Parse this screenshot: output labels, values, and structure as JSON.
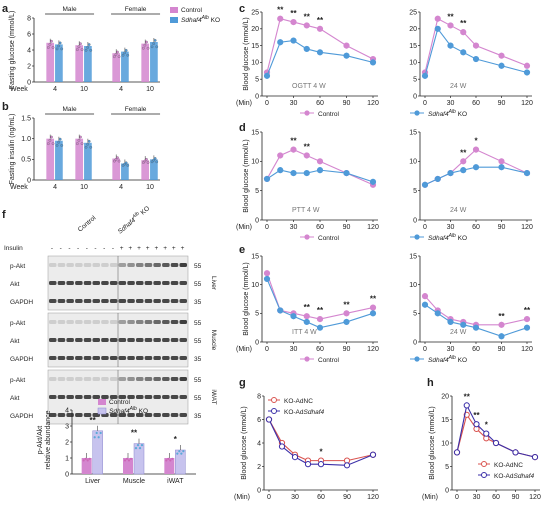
{
  "colors": {
    "control": "#d486cf",
    "ko": "#4f9ad8",
    "ko_adnc": "#d9534f",
    "ko_adsdhaf4": "#3b2fa8",
    "blot_bg": "#ececec",
    "band": "#2a2a2a"
  },
  "chart_data": [
    {
      "panel": "a",
      "type": "bar",
      "ylabel": "Fasting glucose (mmol/L)",
      "ylim": [
        0,
        8
      ],
      "yticks": [
        0,
        2,
        4,
        6,
        8
      ],
      "group_labels": [
        "Male",
        "Female"
      ],
      "x_prefix": "Week",
      "categories": [
        "4",
        "10",
        "4",
        "10"
      ],
      "series": [
        {
          "name": "Control",
          "values": [
            4.9,
            4.6,
            3.6,
            4.8
          ]
        },
        {
          "name": "Sdhaf4Alb KO",
          "values": [
            4.7,
            4.5,
            3.8,
            5.0
          ]
        }
      ],
      "legend": [
        "Control",
        "Sdhaf4",
        "Alb",
        "KO"
      ]
    },
    {
      "panel": "b",
      "type": "bar",
      "ylabel": "Fasting insulin (ng/mL)",
      "ylim": [
        0,
        1.5
      ],
      "yticks": [
        "0",
        "0.5",
        "1.0",
        "1.5"
      ],
      "group_labels": [
        "Male",
        "Female"
      ],
      "x_prefix": "Week",
      "categories": [
        "4",
        "10",
        "4",
        "10"
      ],
      "series": [
        {
          "name": "Control",
          "values": [
            1.0,
            1.0,
            0.52,
            0.48
          ]
        },
        {
          "name": "Sdhaf4Alb KO",
          "values": [
            0.95,
            0.9,
            0.4,
            0.5
          ]
        }
      ]
    },
    {
      "panel": "c",
      "type": "line",
      "ylabel": "Blood glucose (mmol/L)",
      "xlabel_prefix": "(Min)",
      "x": [
        0,
        15,
        30,
        45,
        60,
        90,
        120
      ],
      "xticks": [
        0,
        30,
        60,
        90,
        120
      ],
      "ylim": [
        0,
        25
      ],
      "yticks": [
        0,
        5,
        10,
        15,
        20,
        25
      ],
      "sub": [
        {
          "title": "OGTT 4 W",
          "control": [
            7,
            23,
            22,
            21,
            20,
            15,
            11
          ],
          "ko": [
            6,
            16,
            16.5,
            14,
            13,
            12,
            10
          ],
          "sig": [
            "",
            "**",
            "**",
            "**",
            "**",
            "",
            ""
          ]
        },
        {
          "title": "24 W",
          "control": [
            7,
            23,
            21,
            19,
            15,
            12,
            9
          ],
          "ko": [
            6,
            20,
            15,
            13,
            11,
            9,
            7
          ],
          "sig": [
            "",
            "",
            "**",
            "**",
            "",
            "",
            ""
          ]
        }
      ],
      "legend": [
        "Control",
        "Sdhaf4",
        "Alb",
        "KO"
      ]
    },
    {
      "panel": "d",
      "type": "line",
      "ylabel": "Blood glucose (mmol/L)",
      "xlabel_prefix": "(Min)",
      "x": [
        0,
        15,
        30,
        45,
        60,
        90,
        120
      ],
      "xticks": [
        0,
        30,
        60,
        90,
        120
      ],
      "ylim": [
        0,
        15
      ],
      "yticks": [
        0,
        5,
        10,
        15
      ],
      "sub": [
        {
          "title": "PTT 4 W",
          "control": [
            7,
            11,
            12,
            11,
            10,
            8,
            6
          ],
          "ko": [
            7,
            8.5,
            8,
            8,
            8.5,
            8,
            6.5
          ],
          "sig": [
            "",
            "",
            "**",
            "**",
            "",
            "",
            ""
          ]
        },
        {
          "title": "24 W",
          "control": [
            6,
            7,
            8,
            10,
            12,
            10,
            8
          ],
          "ko": [
            6,
            7,
            8,
            8.5,
            9,
            9,
            8
          ],
          "sig": [
            "",
            "",
            "",
            "**",
            "*",
            "",
            ""
          ]
        }
      ],
      "legend": [
        "Control",
        "Sdhaf4",
        "Alb",
        "KO"
      ]
    },
    {
      "panel": "e",
      "type": "line",
      "ylabel": "Blood glucose (mmol/L)",
      "xlabel_prefix": "(Min)",
      "x": [
        0,
        15,
        30,
        45,
        60,
        90,
        120
      ],
      "xticks": [
        0,
        30,
        60,
        90,
        120
      ],
      "ylim": [
        0,
        15
      ],
      "yticks": [
        0,
        5,
        10,
        15
      ],
      "sub": [
        {
          "title": "ITT 4 W",
          "control": [
            12,
            5.5,
            5,
            4.5,
            4,
            5,
            6
          ],
          "ko": [
            11,
            5.5,
            4.5,
            3.5,
            2.5,
            3.5,
            5
          ],
          "sig": [
            "",
            "",
            "",
            "**",
            "**",
            "**",
            "**"
          ]
        },
        {
          "title": "24 W",
          "control": [
            8,
            5.5,
            4,
            3.5,
            3,
            3,
            4
          ],
          "ko": [
            6.5,
            5,
            3.5,
            3,
            2.5,
            1,
            2.5
          ],
          "sig": [
            "",
            "",
            "",
            "",
            "",
            "**",
            "**"
          ]
        }
      ],
      "legend": [
        "Control",
        "Sdhaf4",
        "Alb",
        "KO"
      ]
    },
    {
      "panel": "g",
      "type": "line",
      "ylabel": "Blood glucose (mmol/L)",
      "xlabel_prefix": "(Min)",
      "x": [
        0,
        15,
        30,
        45,
        60,
        90,
        120
      ],
      "xticks": [
        0,
        30,
        60,
        90,
        120
      ],
      "ylim": [
        0,
        8
      ],
      "yticks": [
        0,
        2,
        4,
        6,
        8
      ],
      "series": [
        {
          "name": "KO-AdNC",
          "values": [
            6,
            4,
            3,
            2.5,
            2.5,
            2.5,
            3
          ]
        },
        {
          "name": "KO-AdSdhaf4",
          "values": [
            6,
            3.7,
            2.8,
            2.2,
            2.2,
            2.1,
            3
          ]
        }
      ],
      "sig": [
        "",
        "",
        "",
        "",
        "*",
        "",
        ""
      ],
      "legend": [
        "KO-AdNC",
        "KO-Ad",
        "Sdhaf4"
      ]
    },
    {
      "panel": "h",
      "type": "line",
      "ylabel": "Blood glucose (mmol/L)",
      "xlabel_prefix": "(Min)",
      "x": [
        0,
        15,
        30,
        45,
        60,
        90,
        120
      ],
      "xticks": [
        0,
        30,
        60,
        90,
        120
      ],
      "ylim": [
        0,
        20
      ],
      "yticks": [
        0,
        5,
        10,
        15,
        20
      ],
      "series": [
        {
          "name": "KO-AdNC",
          "values": [
            8,
            16,
            13,
            11,
            10,
            8,
            7
          ]
        },
        {
          "name": "KO-AdSdhaf4",
          "values": [
            8,
            18,
            14,
            12,
            10,
            8,
            7
          ]
        }
      ],
      "sig": [
        "",
        "**",
        "**",
        "*",
        "",
        "",
        ""
      ],
      "legend": [
        "KO-AdNC",
        "KO-Ad",
        "Sdhaf4"
      ]
    },
    {
      "panel": "f_bar",
      "type": "bar",
      "ylabel": [
        "p-Akt/Akt",
        "relative abundance"
      ],
      "ylim": [
        0,
        4
      ],
      "yticks": [
        0,
        1,
        2,
        3,
        4
      ],
      "categories": [
        "Liver",
        "Muscle",
        "iWAT"
      ],
      "series": [
        {
          "name": "Control",
          "values": [
            1,
            1,
            1
          ]
        },
        {
          "name": "Sdhaf4Alb KO",
          "values": [
            2.7,
            1.9,
            1.5
          ]
        }
      ],
      "sig": [
        "**",
        "**",
        "*"
      ],
      "legend": [
        "Control",
        "Sdhaf4",
        "Alb",
        "KO"
      ]
    }
  ],
  "blot": {
    "panel": "f",
    "group_labels": [
      "Control",
      "Sdhaf4",
      "Alb",
      "KO"
    ],
    "insulin_label": "Insulin",
    "insulin_signs": [
      "-",
      "-",
      "-",
      "-",
      "-",
      "-",
      "-",
      "-",
      "+",
      "+",
      "+",
      "+",
      "+",
      "+",
      "+",
      "+"
    ],
    "tissues": [
      {
        "name": "Liver",
        "rows": [
          "p-Akt",
          "Akt",
          "GAPDH"
        ],
        "markers": [
          "55",
          "55",
          "35"
        ]
      },
      {
        "name": "Muscle",
        "rows": [
          "p-Akt",
          "Akt",
          "GAPDH"
        ],
        "markers": [
          "55",
          "55",
          "35"
        ]
      },
      {
        "name": "iWAT",
        "rows": [
          "p-Akt",
          "Akt",
          "GAPDH"
        ],
        "markers": [
          "55",
          "55",
          "35"
        ]
      }
    ]
  }
}
